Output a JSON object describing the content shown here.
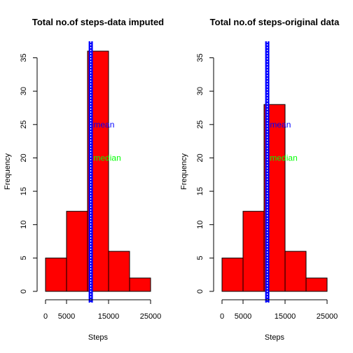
{
  "chart_data": [
    {
      "type": "bar",
      "title": "Total no.of steps-data imputed",
      "xlabel": "Steps",
      "ylabel": "Frequency",
      "bins": [
        [
          0,
          5000
        ],
        [
          5000,
          10000
        ],
        [
          10000,
          15000
        ],
        [
          15000,
          20000
        ],
        [
          20000,
          25000
        ]
      ],
      "values": [
        5,
        12,
        36,
        6,
        2
      ],
      "xticks": [
        0,
        5000,
        15000,
        25000
      ],
      "yticks": [
        0,
        5,
        10,
        15,
        20,
        25,
        30,
        35
      ],
      "xlim": [
        0,
        25000
      ],
      "ylim": [
        0,
        36
      ],
      "bar_color": "#ff0000",
      "mean_line_color": "#0000ff",
      "median_line_color": "#ffffff",
      "vlines": {
        "mean": 10766,
        "median": 10766
      },
      "annotations": [
        {
          "text": "mean",
          "x": 11400,
          "y": 25,
          "color": "#0000ff"
        },
        {
          "text": "median",
          "x": 11400,
          "y": 20,
          "color": "#00ff00"
        }
      ]
    },
    {
      "type": "bar",
      "title": "Total no.of steps-original data",
      "xlabel": "Steps",
      "ylabel": "Frequency",
      "bins": [
        [
          0,
          5000
        ],
        [
          5000,
          10000
        ],
        [
          10000,
          15000
        ],
        [
          15000,
          20000
        ],
        [
          20000,
          25000
        ]
      ],
      "values": [
        5,
        12,
        28,
        6,
        2
      ],
      "xticks": [
        0,
        5000,
        15000,
        25000
      ],
      "yticks": [
        0,
        5,
        10,
        15,
        20,
        25,
        30,
        35
      ],
      "xlim": [
        0,
        25000
      ],
      "ylim": [
        0,
        36
      ],
      "bar_color": "#ff0000",
      "mean_line_color": "#0000ff",
      "median_line_color": "#ffffff",
      "vlines": {
        "mean": 10766,
        "median": 10765
      },
      "annotations": [
        {
          "text": "mean",
          "x": 11400,
          "y": 25,
          "color": "#0000ff"
        },
        {
          "text": "median",
          "x": 11400,
          "y": 20,
          "color": "#00ff00"
        }
      ]
    }
  ]
}
